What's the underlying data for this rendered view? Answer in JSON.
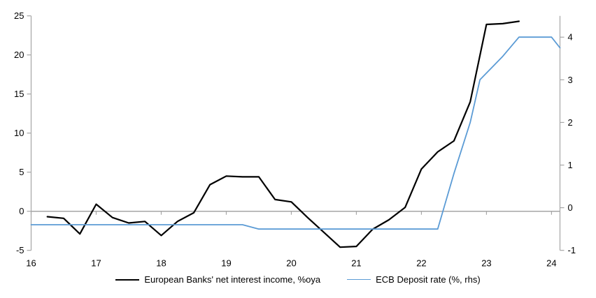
{
  "chart_data": {
    "type": "line",
    "title": "",
    "xlabel": "",
    "ylabel_left": "",
    "ylabel_right": "",
    "grid": "zero-line-only",
    "legend_position": "bottom-center",
    "x_axis": {
      "min": 16,
      "max": 24.13,
      "ticks": [
        16,
        17,
        18,
        19,
        20,
        21,
        22,
        23,
        24
      ]
    },
    "left_axis": {
      "min": -5,
      "max": 25,
      "ticks": [
        25,
        20,
        15,
        10,
        5,
        0,
        -5
      ]
    },
    "right_axis": {
      "min": -1,
      "max": 4.5,
      "ticks": [
        4,
        3,
        2,
        1,
        0,
        -1
      ]
    },
    "colors": {
      "nii_line": "#000000",
      "ecb_line": "#5B9BD5",
      "axis": "#A6A6A6",
      "text": "#000000",
      "background": "#FFFFFF"
    },
    "series": [
      {
        "id": "european-banks-nii",
        "name": "European Banks' net interest income, %oya",
        "axis": "left",
        "color": "#000000",
        "x": [
          16.25,
          16.5,
          16.75,
          17.0,
          17.25,
          17.5,
          17.75,
          18.0,
          18.25,
          18.5,
          18.75,
          19.0,
          19.25,
          19.5,
          19.75,
          20.0,
          20.25,
          20.5,
          20.75,
          21.0,
          21.25,
          21.5,
          21.75,
          22.0,
          22.25,
          22.5,
          22.75,
          23.0,
          23.25,
          23.5
        ],
        "values": [
          -0.7,
          -0.9,
          -2.9,
          0.9,
          -0.8,
          -1.5,
          -1.3,
          -3.1,
          -1.3,
          -0.2,
          3.4,
          4.5,
          4.4,
          4.4,
          1.5,
          1.2,
          -0.8,
          -2.7,
          -4.6,
          -4.5,
          -2.3,
          -1.1,
          0.5,
          5.4,
          7.6,
          9.0,
          14.0,
          23.9,
          24.0,
          24.3
        ]
      },
      {
        "id": "ecb-deposit-rate",
        "name": "ECB Deposit rate (%, rhs)",
        "axis": "right",
        "color": "#5B9BD5",
        "x": [
          16.0,
          19.25,
          19.5,
          22.25,
          22.5,
          22.75,
          22.9,
          23.25,
          23.5,
          24.0,
          24.13
        ],
        "values": [
          -0.4,
          -0.4,
          -0.5,
          -0.5,
          0.8,
          2.0,
          3.0,
          3.55,
          4.0,
          4.0,
          3.75
        ]
      }
    ]
  }
}
